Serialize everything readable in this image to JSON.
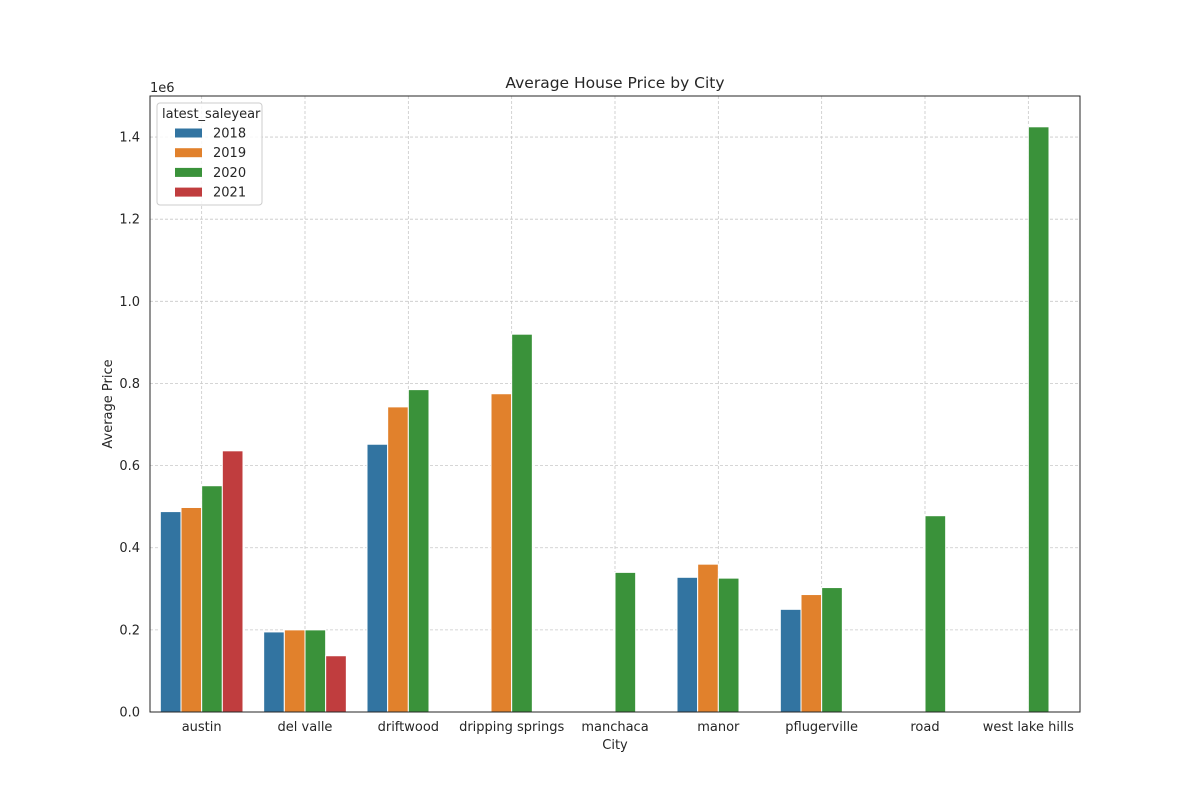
{
  "chart_data": {
    "type": "bar",
    "title": "Average House Price by City",
    "xlabel": "City",
    "ylabel": "Average Price",
    "y_offset_label": "1e6",
    "ylim": [
      0,
      1.5
    ],
    "yticks": [
      0.0,
      0.2,
      0.4,
      0.6,
      0.8,
      1.0,
      1.2,
      1.4
    ],
    "ytick_labels": [
      "0.0",
      "0.2",
      "0.4",
      "0.6",
      "0.8",
      "1.0",
      "1.2",
      "1.4"
    ],
    "grid": true,
    "legend": {
      "title": "latest_saleyear",
      "placement": "top-left"
    },
    "categories": [
      "austin",
      "del valle",
      "driftwood",
      "dripping springs",
      "manchaca",
      "manor",
      "pflugerville",
      "road",
      "west lake hills"
    ],
    "series": [
      {
        "name": "2018",
        "color": "#3274a1",
        "values": [
          0.488,
          0.195,
          0.652,
          null,
          null,
          0.328,
          0.25,
          null,
          null
        ]
      },
      {
        "name": "2019",
        "color": "#e1812c",
        "values": [
          0.498,
          0.2,
          0.743,
          0.775,
          null,
          0.36,
          0.286,
          null,
          null
        ]
      },
      {
        "name": "2020",
        "color": "#3a923a",
        "values": [
          0.551,
          0.2,
          0.785,
          0.92,
          0.34,
          0.326,
          0.303,
          0.478,
          1.425
        ]
      },
      {
        "name": "2021",
        "color": "#c03d3e",
        "values": [
          0.636,
          0.137,
          null,
          null,
          null,
          null,
          null,
          null,
          null
        ]
      }
    ]
  }
}
